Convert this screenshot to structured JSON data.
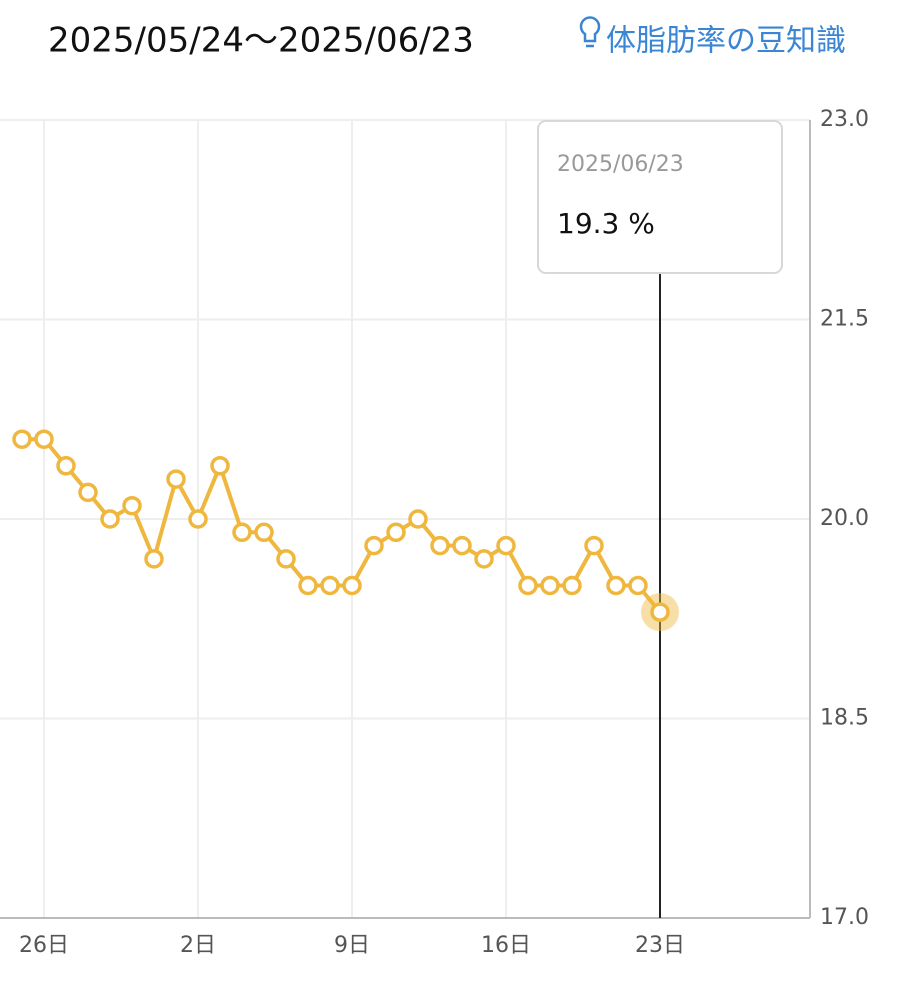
{
  "header": {
    "range": "2025/05/24～2025/06/23",
    "link": "体脂肪率の豆知識"
  },
  "chart_data": {
    "type": "line",
    "categories": [
      null,
      "26日",
      null,
      null,
      null,
      null,
      null,
      null,
      "2日",
      null,
      null,
      null,
      null,
      null,
      null,
      "9日",
      null,
      null,
      null,
      null,
      null,
      null,
      "16日",
      null,
      null,
      null,
      null,
      null,
      null,
      "23日"
    ],
    "values": [
      20.6,
      20.6,
      20.4,
      20.2,
      20.0,
      20.1,
      19.7,
      20.3,
      20.0,
      20.4,
      19.9,
      19.9,
      19.7,
      19.5,
      19.5,
      19.5,
      19.8,
      19.9,
      20.0,
      19.8,
      19.8,
      19.7,
      19.8,
      19.5,
      19.5,
      19.5,
      19.8,
      19.5,
      19.5,
      19.3
    ],
    "color": "#efb73e",
    "ylim": [
      17.0,
      23.0
    ],
    "yticks": [
      {
        "value": 17.0,
        "label": "17.0"
      },
      {
        "value": 18.5,
        "label": "18.5"
      },
      {
        "value": 20.0,
        "label": "20.0"
      },
      {
        "value": 21.5,
        "label": "21.5"
      },
      {
        "value": 23.0,
        "label": "23.0"
      }
    ],
    "grid": true,
    "tooltip": {
      "date": "2025/06/23",
      "text": "19.3 %"
    }
  }
}
